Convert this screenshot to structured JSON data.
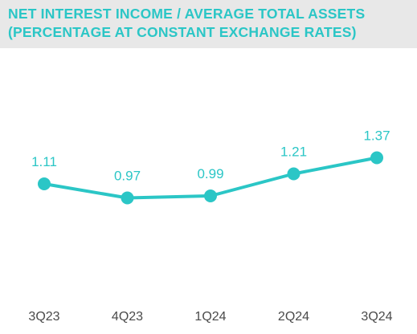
{
  "title_lines": [
    "NET INTEREST INCOME / AVERAGE TOTAL ASSETS",
    "(PERCENTAGE AT CONSTANT EXCHANGE RATES)"
  ],
  "colors": {
    "accent": "#2bc6c6",
    "title_background": "#e8e8e8",
    "axis_label": "#4a4a4a"
  },
  "chart_data": {
    "type": "line",
    "title": "NET INTEREST INCOME / AVERAGE TOTAL ASSETS (PERCENTAGE AT CONSTANT EXCHANGE RATES)",
    "categories": [
      "3Q23",
      "4Q23",
      "1Q24",
      "2Q24",
      "3Q24"
    ],
    "values": [
      1.11,
      0.97,
      0.99,
      1.21,
      1.37
    ],
    "data_labels": [
      "1.11",
      "0.97",
      "0.99",
      "1.21",
      "1.37"
    ],
    "xlabel": "",
    "ylabel": "",
    "grid": false,
    "legend": "none"
  }
}
